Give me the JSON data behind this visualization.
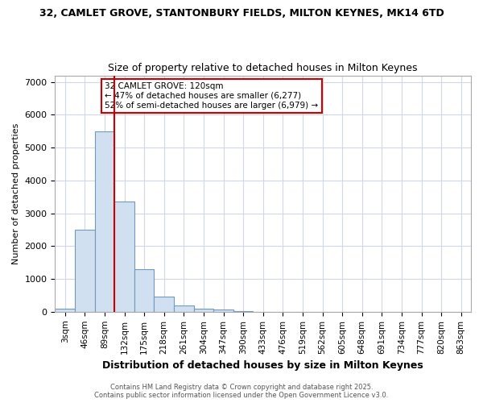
{
  "title_line1": "32, CAMLET GROVE, STANTONBURY FIELDS, MILTON KEYNES, MK14 6TD",
  "title_line2": "Size of property relative to detached houses in Milton Keynes",
  "xlabel": "Distribution of detached houses by size in Milton Keynes",
  "ylabel": "Number of detached properties",
  "bar_color": "#d0e0f0",
  "bar_edge_color": "#7099bb",
  "categories": [
    "3sqm",
    "46sqm",
    "89sqm",
    "132sqm",
    "175sqm",
    "218sqm",
    "261sqm",
    "304sqm",
    "347sqm",
    "390sqm",
    "433sqm",
    "476sqm",
    "519sqm",
    "562sqm",
    "605sqm",
    "648sqm",
    "691sqm",
    "734sqm",
    "777sqm",
    "820sqm",
    "863sqm"
  ],
  "values": [
    100,
    2500,
    5500,
    3350,
    1300,
    450,
    200,
    100,
    60,
    30,
    5,
    2,
    1,
    0,
    0,
    0,
    0,
    0,
    0,
    0,
    0
  ],
  "ylim": [
    0,
    7200
  ],
  "yticks": [
    0,
    1000,
    2000,
    3000,
    4000,
    5000,
    6000,
    7000
  ],
  "red_line_x": 2.5,
  "annotation_title": "32 CAMLET GROVE: 120sqm",
  "annotation_line2": "← 47% of detached houses are smaller (6,277)",
  "annotation_line3": "52% of semi-detached houses are larger (6,979) →",
  "red_line_color": "#cc0000",
  "background_color": "#ffffff",
  "grid_color": "#d0d8e8",
  "footnote_line1": "Contains HM Land Registry data © Crown copyright and database right 2025.",
  "footnote_line2": "Contains public sector information licensed under the Open Government Licence v3.0."
}
